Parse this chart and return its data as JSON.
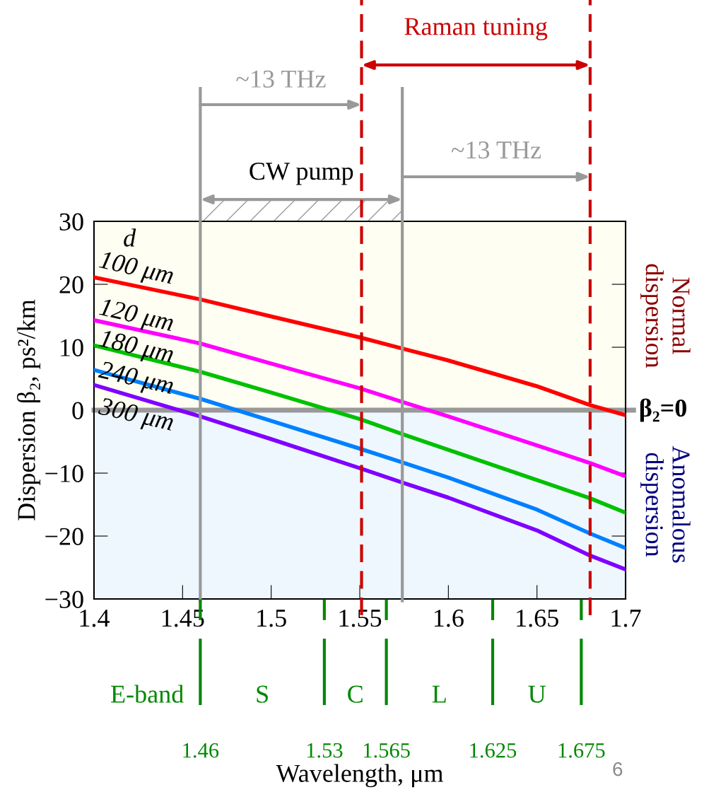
{
  "chart_data": {
    "type": "line",
    "xlabel": "Wavelength, μm",
    "ylabel": "Dispersion β₂, ps²/km",
    "legend_title": "d",
    "x": [
      1.4,
      1.46,
      1.5,
      1.551,
      1.574,
      1.6,
      1.65,
      1.68,
      1.7
    ],
    "series": [
      {
        "name": "100 μm",
        "color": "#ff0000",
        "values": [
          21.1,
          17.6,
          14.9,
          11.5,
          9.8,
          7.9,
          3.8,
          0.8,
          -0.8
        ]
      },
      {
        "name": "120 μm",
        "color": "#ff00ff",
        "values": [
          14.3,
          10.6,
          7.4,
          3.4,
          1.3,
          -1.0,
          -5.6,
          -8.4,
          -10.5
        ]
      },
      {
        "name": "180 μm",
        "color": "#00c000",
        "values": [
          10.3,
          6.1,
          2.8,
          -1.5,
          -3.8,
          -6.3,
          -11.1,
          -14.0,
          -16.3
        ]
      },
      {
        "name": "240 μm",
        "color": "#0080ff",
        "values": [
          6.4,
          1.8,
          -1.7,
          -6.2,
          -8.3,
          -10.7,
          -15.8,
          -19.6,
          -21.9
        ]
      },
      {
        "name": "300 μm",
        "color": "#7f00ff",
        "values": [
          4.0,
          -1.0,
          -4.6,
          -9.3,
          -11.5,
          -13.9,
          -19.1,
          -23.1,
          -25.3
        ]
      }
    ],
    "xlim": [
      1.4,
      1.7
    ],
    "ylim": [
      -30,
      30
    ],
    "xticks": [
      1.4,
      1.45,
      1.5,
      1.55,
      1.6,
      1.65,
      1.7
    ],
    "yticks": [
      {
        "value": -30,
        "label": "−30"
      },
      {
        "value": -20,
        "label": "−20"
      },
      {
        "value": -10,
        "label": "−10"
      },
      0,
      10,
      20,
      30
    ],
    "x2lim": [
      1.4,
      1.7
    ],
    "x2ticks": [
      1.46,
      1.53,
      1.565,
      1.625,
      1.675
    ],
    "ref_lines": [
      {
        "axis": "y",
        "value": 0,
        "label": "β₂=0",
        "color": "#999999",
        "line_style": "solid"
      },
      {
        "axis": "x",
        "value": 1.46,
        "color": "#999999",
        "line_style": "solid"
      },
      {
        "axis": "x",
        "value": 1.574,
        "color": "#999999",
        "line_style": "solid"
      },
      {
        "axis": "x",
        "value": 1.551,
        "color": "#cc0000",
        "line_style": "dashed"
      },
      {
        "axis": "x",
        "value": 1.68,
        "color": "#cc0000",
        "line_style": "dashed"
      }
    ],
    "bands": [
      {
        "axis": "y",
        "from": 0,
        "to": 30,
        "color": "#fffef2"
      },
      {
        "axis": "y",
        "from": -30,
        "to": 0,
        "color": "#eef7fd"
      }
    ],
    "annotations": [
      "~13 THz",
      "~13 THz",
      "CW pump",
      "Raman tuning",
      "E-band",
      "S",
      "C",
      "L",
      "U",
      "Normal\ndispersion",
      "Anomalous\ndispersion",
      "6"
    ],
    "grid": false,
    "legend": false,
    "marker": "none",
    "line_style": "solid"
  }
}
